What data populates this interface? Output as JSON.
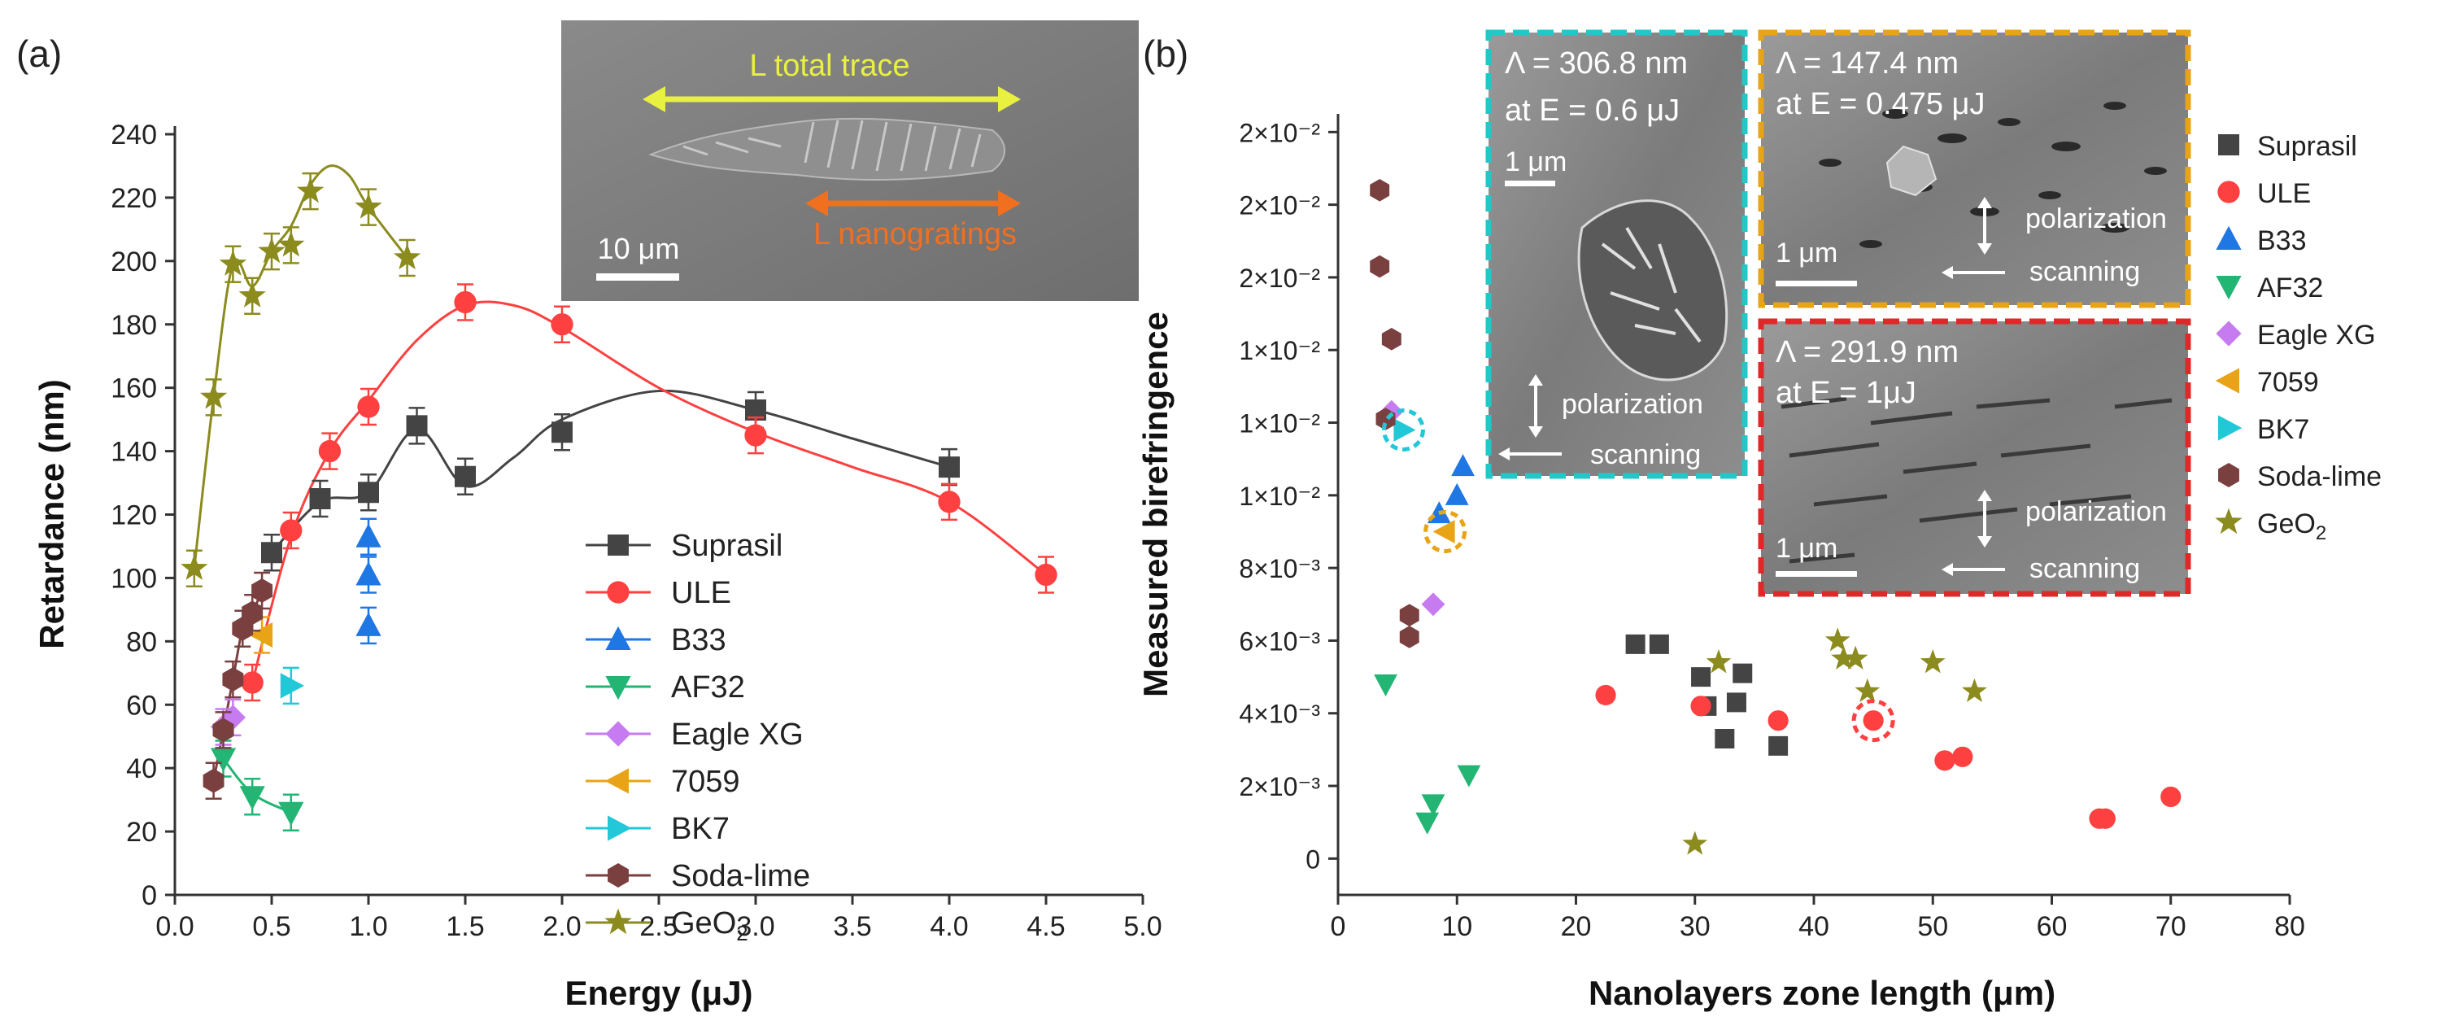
{
  "colors": {
    "Suprasil": "#444444",
    "ULE": "#ff4040",
    "B33": "#1f77e4",
    "AF32": "#22b573",
    "Eagle XG": "#c77bf0",
    "7059": "#e8a317",
    "BK7": "#22c8d8",
    "Soda-lime": "#7a4040",
    "GeO2": "#8b8b1e"
  },
  "chart_data": [
    {
      "panel_label": "(a)",
      "type": "scatter",
      "xlabel": "Energy (μJ)",
      "ylabel": "Retardance (nm)",
      "xlim": [
        0,
        5
      ],
      "ylim": [
        0,
        240
      ],
      "x_ticks": [
        "0.0",
        "0.5",
        "1.0",
        "1.5",
        "2.0",
        "2.5",
        "3.0",
        "3.5",
        "4.0",
        "4.5",
        "5.0"
      ],
      "y_ticks": [
        "0",
        "20",
        "40",
        "60",
        "80",
        "100",
        "120",
        "140",
        "160",
        "180",
        "200",
        "220",
        "240"
      ],
      "legend": [
        "Suprasil",
        "ULE",
        "B33",
        "AF32",
        "Eagle XG",
        "7059",
        "BK7",
        "Soda-lime",
        "GeO2"
      ],
      "legend_position": "center-right",
      "series": [
        {
          "name": "Suprasil",
          "marker": "square",
          "points": [
            [
              0.5,
              108
            ],
            [
              0.75,
              125
            ],
            [
              1.0,
              127
            ],
            [
              1.25,
              148
            ],
            [
              1.5,
              132
            ],
            [
              2.0,
              146
            ],
            [
              3.0,
              153
            ],
            [
              4.0,
              135
            ]
          ],
          "curve": [
            [
              0.5,
              108
            ],
            [
              0.75,
              124
            ],
            [
              1.0,
              127
            ],
            [
              1.25,
              147
            ],
            [
              1.5,
              129
            ],
            [
              1.75,
              138
            ],
            [
              2.0,
              150
            ],
            [
              2.5,
              159
            ],
            [
              3.0,
              153
            ],
            [
              3.5,
              144
            ],
            [
              4.0,
              135
            ]
          ]
        },
        {
          "name": "ULE",
          "marker": "circle",
          "points": [
            [
              0.4,
              67
            ],
            [
              0.6,
              115
            ],
            [
              0.8,
              140
            ],
            [
              1.0,
              154
            ],
            [
              1.5,
              187
            ],
            [
              2.0,
              180
            ],
            [
              3.0,
              145
            ],
            [
              4.0,
              124
            ],
            [
              4.5,
              101
            ]
          ],
          "curve": [
            [
              0.4,
              67
            ],
            [
              0.6,
              113
            ],
            [
              0.8,
              140
            ],
            [
              1.0,
              156
            ],
            [
              1.25,
              175
            ],
            [
              1.5,
              186
            ],
            [
              1.75,
              186
            ],
            [
              2.0,
              179
            ],
            [
              2.5,
              160
            ],
            [
              3.0,
              146
            ],
            [
              3.5,
              135
            ],
            [
              4.0,
              124
            ],
            [
              4.5,
              101
            ]
          ]
        },
        {
          "name": "B33",
          "marker": "triangle-up",
          "points": [
            [
              1.0,
              113
            ],
            [
              1.0,
              101
            ],
            [
              1.0,
              85
            ]
          ]
        },
        {
          "name": "AF32",
          "marker": "triangle-down",
          "points": [
            [
              0.25,
              43
            ],
            [
              0.4,
              31
            ],
            [
              0.6,
              26
            ]
          ],
          "curve": [
            [
              0.25,
              43
            ],
            [
              0.4,
              32
            ],
            [
              0.6,
              26
            ]
          ]
        },
        {
          "name": "Eagle XG",
          "marker": "diamond",
          "points": [
            [
              0.25,
              53
            ],
            [
              0.3,
              56
            ]
          ]
        },
        {
          "name": "7059",
          "marker": "triangle-left",
          "points": [
            [
              0.45,
              82
            ]
          ]
        },
        {
          "name": "BK7",
          "marker": "triangle-right",
          "points": [
            [
              0.6,
              66
            ]
          ]
        },
        {
          "name": "Soda-lime",
          "marker": "hexagon",
          "points": [
            [
              0.2,
              36
            ],
            [
              0.25,
              52
            ],
            [
              0.3,
              68
            ],
            [
              0.35,
              84
            ],
            [
              0.4,
              89
            ],
            [
              0.45,
              96
            ]
          ],
          "curve": [
            [
              0.2,
              36
            ],
            [
              0.25,
              52
            ],
            [
              0.3,
              68
            ],
            [
              0.35,
              84
            ],
            [
              0.4,
              89
            ],
            [
              0.45,
              96
            ]
          ]
        },
        {
          "name": "GeO2",
          "marker": "star",
          "points": [
            [
              0.1,
              103
            ],
            [
              0.2,
              157
            ],
            [
              0.3,
              199
            ],
            [
              0.4,
              189
            ],
            [
              0.5,
              203
            ],
            [
              0.6,
              205
            ],
            [
              0.7,
              222
            ],
            [
              1.0,
              217
            ],
            [
              1.2,
              201
            ]
          ],
          "curve": [
            [
              0.1,
              103
            ],
            [
              0.2,
              157
            ],
            [
              0.3,
              199
            ],
            [
              0.4,
              192
            ],
            [
              0.5,
              203
            ],
            [
              0.6,
              211
            ],
            [
              0.7,
              224
            ],
            [
              0.8,
              230
            ],
            [
              0.9,
              227
            ],
            [
              1.0,
              217
            ],
            [
              1.2,
              201
            ]
          ]
        }
      ],
      "inset": {
        "label_total": "L total trace",
        "label_nanogratings": "L nanogratings",
        "scale_bar": "10 μm"
      }
    },
    {
      "panel_label": "(b)",
      "type": "scatter",
      "xlabel": "Nanolayers zone length (μm)",
      "ylabel": "Measured birefringence",
      "xlim": [
        0,
        80
      ],
      "ylim": [
        -0.001,
        0.0205
      ],
      "x_ticks": [
        "0",
        "10",
        "20",
        "30",
        "40",
        "50",
        "60",
        "70",
        "80"
      ],
      "y_ticks": [
        {
          "value": 0,
          "label": "0"
        },
        {
          "value": 0.002,
          "label": "2×10⁻³"
        },
        {
          "value": 0.004,
          "label": "4×10⁻³"
        },
        {
          "value": 0.006,
          "label": "6×10⁻³"
        },
        {
          "value": 0.008,
          "label": "8×10⁻³"
        },
        {
          "value": 0.01,
          "label": "1×10⁻²"
        },
        {
          "value": 0.012,
          "label": "1×10⁻²"
        },
        {
          "value": 0.014,
          "label": "1×10⁻²"
        },
        {
          "value": 0.016,
          "label": "2×10⁻²"
        },
        {
          "value": 0.018,
          "label": "2×10⁻²"
        },
        {
          "value": 0.02,
          "label": "2×10⁻²"
        }
      ],
      "legend": [
        "Suprasil",
        "ULE",
        "B33",
        "AF32",
        "Eagle XG",
        "7059",
        "BK7",
        "Soda-lime",
        "GeO2"
      ],
      "legend_position": "right",
      "series": [
        {
          "name": "Suprasil",
          "marker": "square",
          "points": [
            [
              25,
              0.0059
            ],
            [
              27,
              0.0059
            ],
            [
              30.5,
              0.005
            ],
            [
              31,
              0.0042
            ],
            [
              32.5,
              0.0033
            ],
            [
              33.5,
              0.0043
            ],
            [
              34,
              0.0051
            ],
            [
              37,
              0.0031
            ]
          ]
        },
        {
          "name": "ULE",
          "marker": "circle",
          "points": [
            [
              22.5,
              0.0045
            ],
            [
              30.5,
              0.0042
            ],
            [
              37,
              0.0038
            ],
            [
              45,
              0.0038
            ],
            [
              51,
              0.0027
            ],
            [
              52.5,
              0.0028
            ],
            [
              64,
              0.0011
            ],
            [
              64.5,
              0.0011
            ],
            [
              70,
              0.0017
            ]
          ]
        },
        {
          "name": "B33",
          "marker": "triangle-up",
          "points": [
            [
              8.5,
              0.0095
            ],
            [
              10,
              0.01
            ],
            [
              10.5,
              0.0108
            ]
          ]
        },
        {
          "name": "AF32",
          "marker": "triangle-down",
          "points": [
            [
              4,
              0.0048
            ],
            [
              7.5,
              0.001
            ],
            [
              8,
              0.0015
            ],
            [
              11,
              0.0023
            ]
          ]
        },
        {
          "name": "Eagle XG",
          "marker": "diamond",
          "points": [
            [
              4.5,
              0.0123
            ],
            [
              8,
              0.007
            ]
          ]
        },
        {
          "name": "7059",
          "marker": "triangle-left",
          "points": [
            [
              9,
              0.009
            ]
          ]
        },
        {
          "name": "BK7",
          "marker": "triangle-right",
          "points": [
            [
              5.5,
              0.0118
            ]
          ]
        },
        {
          "name": "Soda-lime",
          "marker": "hexagon",
          "points": [
            [
              3.5,
              0.0184
            ],
            [
              3.5,
              0.0163
            ],
            [
              4.5,
              0.0143
            ],
            [
              4,
              0.0121
            ],
            [
              6,
              0.0067
            ],
            [
              6,
              0.0061
            ]
          ]
        },
        {
          "name": "GeO2",
          "marker": "star",
          "points": [
            [
              30,
              0.0004
            ],
            [
              32,
              0.0054
            ],
            [
              42,
              0.006
            ],
            [
              42.5,
              0.0055
            ],
            [
              43.5,
              0.0055
            ],
            [
              44.5,
              0.0046
            ],
            [
              50,
              0.0054
            ],
            [
              53.5,
              0.0046
            ]
          ]
        }
      ],
      "highlights": [
        {
          "x": 5.5,
          "y": 0.0118,
          "color": "#22c8d8"
        },
        {
          "x": 9,
          "y": 0.009,
          "color": "#e8a317"
        },
        {
          "x": 45,
          "y": 0.0038,
          "color": "#ff4040"
        }
      ],
      "insets": [
        {
          "lambda": "Λ = 306.8 nm",
          "energy": "at E = 0.6 μJ",
          "scale": "1 μm",
          "polarization": "polarization",
          "scanning": "scanning",
          "border": "#22c8c8"
        },
        {
          "lambda": "Λ = 147.4 nm",
          "energy": "at E = 0.475 μJ",
          "scale": "1 μm",
          "polarization": "polarization",
          "scanning": "scanning",
          "border": "#e8a317"
        },
        {
          "lambda": "Λ = 291.9 nm",
          "energy": "at E = 1μJ",
          "scale": "1 μm",
          "polarization": "polarization",
          "scanning": "scanning",
          "border": "#e02828"
        }
      ]
    }
  ]
}
